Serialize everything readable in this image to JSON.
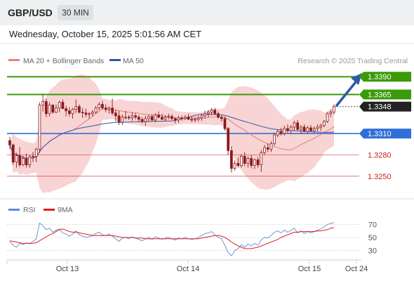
{
  "header": {
    "symbol": "GBP/USD",
    "timeframe": "30 MIN",
    "datetime": "Wednesday, October 15, 2025 5:01:56 AM CET"
  },
  "legend": {
    "bollinger": {
      "label": "MA 20 + Bollinger Bands",
      "color": "#f08080"
    },
    "ma50": {
      "label": "MA 50",
      "color": "#2e5aa8"
    },
    "credit": "Research © 2025 Trading Central"
  },
  "rsi_legend": {
    "rsi": {
      "label": "RSI",
      "color": "#5b8ad9"
    },
    "ma9": {
      "label": "9MA",
      "color": "#e02020"
    }
  },
  "levels": [
    {
      "value": 1.339,
      "label": "1.3390",
      "kind": "green-target"
    },
    {
      "value": 1.3365,
      "label": "1.3365",
      "kind": "green"
    },
    {
      "value": 1.3348,
      "label": "1.3348",
      "kind": "current"
    },
    {
      "value": 1.331,
      "label": "1.3310",
      "kind": "pivot"
    },
    {
      "value": 1.328,
      "label": "1.3280",
      "kind": "support"
    },
    {
      "value": 1.325,
      "label": "1.3250",
      "kind": "support"
    }
  ],
  "colors": {
    "green": "#3a9a0a",
    "blue": "#2f6fd8",
    "red": "#cc2222",
    "dark": "#222222",
    "candle": "#8b1a1a",
    "band": "#f7c5c5",
    "arrow": "#2e5aa8"
  },
  "chart_data": {
    "type": "candlestick",
    "x_ticks": [
      "Oct 13",
      "Oct 14",
      "Oct 15",
      "Oct 24"
    ],
    "price_range": [
      1.3233,
      1.3404
    ],
    "current_price": 1.3348,
    "ohlc": [
      [
        1.33,
        1.3305,
        1.3288,
        1.3294
      ],
      [
        1.3294,
        1.3296,
        1.3266,
        1.327
      ],
      [
        1.327,
        1.3283,
        1.3262,
        1.3279
      ],
      [
        1.3279,
        1.3291,
        1.3263,
        1.3266
      ],
      [
        1.3266,
        1.3279,
        1.3264,
        1.3275
      ],
      [
        1.3275,
        1.3282,
        1.3262,
        1.3266
      ],
      [
        1.3266,
        1.328,
        1.3262,
        1.3277
      ],
      [
        1.3277,
        1.3284,
        1.327,
        1.3278
      ],
      [
        1.3278,
        1.329,
        1.327,
        1.3288
      ],
      [
        1.3288,
        1.3354,
        1.3283,
        1.335
      ],
      [
        1.335,
        1.3366,
        1.3341,
        1.3355
      ],
      [
        1.3355,
        1.3359,
        1.3333,
        1.3338
      ],
      [
        1.3338,
        1.3354,
        1.3334,
        1.335
      ],
      [
        1.335,
        1.3351,
        1.3338,
        1.334
      ],
      [
        1.334,
        1.3351,
        1.3339,
        1.3346
      ],
      [
        1.3346,
        1.3356,
        1.334,
        1.3354
      ],
      [
        1.3354,
        1.3358,
        1.3345,
        1.3345
      ],
      [
        1.3345,
        1.3349,
        1.3334,
        1.3342
      ],
      [
        1.3342,
        1.3347,
        1.3334,
        1.3338
      ],
      [
        1.3338,
        1.3346,
        1.3331,
        1.3344
      ],
      [
        1.3344,
        1.3358,
        1.3339,
        1.3348
      ],
      [
        1.3348,
        1.3351,
        1.3338,
        1.334
      ],
      [
        1.334,
        1.3346,
        1.3332,
        1.3339
      ],
      [
        1.3339,
        1.3345,
        1.3333,
        1.3337
      ],
      [
        1.3337,
        1.334,
        1.3331,
        1.3338
      ],
      [
        1.3338,
        1.3343,
        1.3334,
        1.334
      ],
      [
        1.334,
        1.3349,
        1.3338,
        1.3346
      ],
      [
        1.3346,
        1.3354,
        1.3343,
        1.3351
      ],
      [
        1.3351,
        1.3356,
        1.3344,
        1.3346
      ],
      [
        1.3346,
        1.3351,
        1.334,
        1.3344
      ],
      [
        1.3344,
        1.3348,
        1.3338,
        1.3346
      ],
      [
        1.3346,
        1.3359,
        1.3336,
        1.3339
      ],
      [
        1.3339,
        1.3344,
        1.3327,
        1.3335
      ],
      [
        1.3335,
        1.3342,
        1.3322,
        1.3326
      ],
      [
        1.3326,
        1.3337,
        1.3322,
        1.3333
      ],
      [
        1.3333,
        1.3342,
        1.333,
        1.3333
      ],
      [
        1.3333,
        1.3336,
        1.3329,
        1.3332
      ],
      [
        1.3332,
        1.334,
        1.3328,
        1.3335
      ],
      [
        1.3335,
        1.3339,
        1.333,
        1.3333
      ],
      [
        1.3333,
        1.3336,
        1.3326,
        1.333
      ],
      [
        1.333,
        1.3333,
        1.3324,
        1.3327
      ],
      [
        1.3327,
        1.3335,
        1.3321,
        1.3331
      ],
      [
        1.3331,
        1.3336,
        1.3326,
        1.3334
      ],
      [
        1.3334,
        1.3337,
        1.3328,
        1.3329
      ],
      [
        1.3329,
        1.3339,
        1.3326,
        1.3336
      ],
      [
        1.3336,
        1.3341,
        1.3331,
        1.3333
      ],
      [
        1.3333,
        1.3338,
        1.3329,
        1.333
      ],
      [
        1.333,
        1.3336,
        1.3327,
        1.3333
      ],
      [
        1.3333,
        1.3338,
        1.333,
        1.3334
      ],
      [
        1.3334,
        1.3337,
        1.3329,
        1.3331
      ],
      [
        1.3331,
        1.3333,
        1.3324,
        1.3329
      ],
      [
        1.3329,
        1.3335,
        1.3325,
        1.3332
      ],
      [
        1.3332,
        1.3335,
        1.3328,
        1.3331
      ],
      [
        1.3331,
        1.3336,
        1.3329,
        1.3333
      ],
      [
        1.3333,
        1.3338,
        1.3329,
        1.333
      ],
      [
        1.333,
        1.3334,
        1.3326,
        1.3329
      ],
      [
        1.3329,
        1.3333,
        1.3326,
        1.333
      ],
      [
        1.333,
        1.3335,
        1.3327,
        1.3332
      ],
      [
        1.3332,
        1.3337,
        1.3328,
        1.3335
      ],
      [
        1.3335,
        1.3342,
        1.3331,
        1.3338
      ],
      [
        1.3338,
        1.3343,
        1.3333,
        1.334
      ],
      [
        1.334,
        1.3346,
        1.3336,
        1.3343
      ],
      [
        1.3343,
        1.3346,
        1.3336,
        1.3338
      ],
      [
        1.3338,
        1.3341,
        1.3331,
        1.3333
      ],
      [
        1.3333,
        1.3336,
        1.3327,
        1.3331
      ],
      [
        1.3331,
        1.3334,
        1.3314,
        1.3317
      ],
      [
        1.3317,
        1.3319,
        1.328,
        1.3286
      ],
      [
        1.3286,
        1.3292,
        1.3255,
        1.3261
      ],
      [
        1.3261,
        1.3272,
        1.3258,
        1.3268
      ],
      [
        1.3268,
        1.3276,
        1.3262,
        1.3265
      ],
      [
        1.3265,
        1.3281,
        1.3262,
        1.3278
      ],
      [
        1.3278,
        1.3284,
        1.3264,
        1.3268
      ],
      [
        1.3268,
        1.3278,
        1.3262,
        1.3275
      ],
      [
        1.3275,
        1.328,
        1.3261,
        1.3265
      ],
      [
        1.3265,
        1.3275,
        1.326,
        1.3273
      ],
      [
        1.3273,
        1.3277,
        1.3262,
        1.3266
      ],
      [
        1.3266,
        1.3287,
        1.3256,
        1.3283
      ],
      [
        1.3283,
        1.3294,
        1.328,
        1.329
      ],
      [
        1.329,
        1.3296,
        1.3284,
        1.3288
      ],
      [
        1.3288,
        1.3299,
        1.3284,
        1.3296
      ],
      [
        1.3296,
        1.3311,
        1.3293,
        1.3308
      ],
      [
        1.3308,
        1.3316,
        1.3305,
        1.3313
      ],
      [
        1.3313,
        1.3318,
        1.3307,
        1.331
      ],
      [
        1.331,
        1.3321,
        1.3307,
        1.3317
      ],
      [
        1.3317,
        1.3323,
        1.3311,
        1.3314
      ],
      [
        1.3314,
        1.3322,
        1.3309,
        1.3319
      ],
      [
        1.3319,
        1.3328,
        1.3314,
        1.3325
      ],
      [
        1.3325,
        1.3329,
        1.3314,
        1.3316
      ],
      [
        1.3316,
        1.3322,
        1.331,
        1.3319
      ],
      [
        1.3319,
        1.3323,
        1.3312,
        1.3313
      ],
      [
        1.3313,
        1.3321,
        1.331,
        1.3318
      ],
      [
        1.3318,
        1.3322,
        1.3312,
        1.3314
      ],
      [
        1.3314,
        1.332,
        1.3311,
        1.3317
      ],
      [
        1.3317,
        1.3323,
        1.3313,
        1.3319
      ],
      [
        1.3319,
        1.3324,
        1.3314,
        1.3321
      ],
      [
        1.3321,
        1.3329,
        1.3319,
        1.3327
      ],
      [
        1.3327,
        1.334,
        1.3325,
        1.3338
      ],
      [
        1.3338,
        1.3344,
        1.3333,
        1.334
      ],
      [
        1.334,
        1.3351,
        1.3337,
        1.3348
      ]
    ],
    "rsi": {
      "levels": [
        70,
        50,
        30
      ],
      "range": [
        20,
        80
      ]
    }
  },
  "rsi_series": {
    "rsi": [
      44,
      38,
      35,
      41,
      39,
      42,
      40,
      44,
      48,
      72,
      68,
      62,
      64,
      58,
      61,
      63,
      57,
      55,
      52,
      55,
      60,
      54,
      52,
      50,
      51,
      53,
      56,
      58,
      54,
      53,
      55,
      52,
      48,
      44,
      49,
      50,
      48,
      51,
      49,
      47,
      45,
      48,
      50,
      47,
      51,
      49,
      47,
      49,
      50,
      48,
      46,
      49,
      48,
      50,
      48,
      47,
      48,
      50,
      53,
      56,
      57,
      59,
      54,
      50,
      48,
      38,
      27,
      22,
      30,
      33,
      39,
      35,
      40,
      37,
      41,
      38,
      46,
      50,
      49,
      53,
      58,
      60,
      57,
      61,
      58,
      61,
      64,
      57,
      60,
      56,
      59,
      57,
      59,
      61,
      63,
      66,
      70,
      71,
      73
    ],
    "ma9": [
      45,
      44,
      43,
      42,
      41,
      41,
      41,
      41,
      42,
      45,
      48,
      51,
      54,
      56,
      59,
      62,
      63,
      61,
      59,
      58,
      58,
      57,
      56,
      55,
      54,
      53,
      53,
      53,
      53,
      53,
      53,
      53,
      52,
      51,
      50,
      50,
      50,
      50,
      49,
      49,
      49,
      48,
      48,
      48,
      48,
      48,
      48,
      48,
      48,
      48,
      48,
      48,
      48,
      48,
      48,
      48,
      48,
      48,
      49,
      50,
      51,
      52,
      53,
      53,
      52,
      50,
      47,
      43,
      40,
      37,
      35,
      33,
      33,
      33,
      34,
      35,
      37,
      39,
      41,
      43,
      45,
      47,
      50,
      52,
      54,
      56,
      58,
      58,
      59,
      59,
      59,
      59,
      59,
      60,
      60,
      61,
      62,
      64,
      65
    ]
  }
}
